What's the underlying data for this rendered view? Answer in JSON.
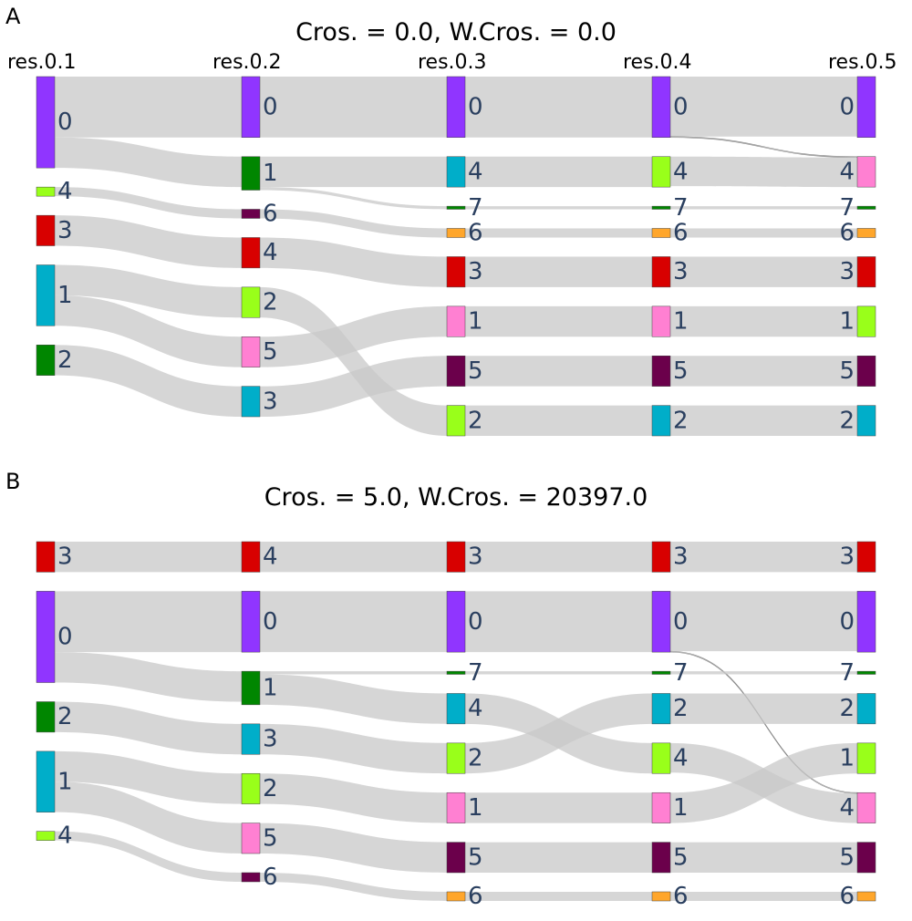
{
  "panels": [
    {
      "letter": "A",
      "title": "Cros. = 0.0, W.Cros. = 0.0",
      "columns": [
        "res.0.1",
        "res.0.2",
        "res.0.3",
        "res.0.4",
        "res.0.5"
      ],
      "nodes": [
        [
          {
            "label": "0",
            "color": "#9035ff",
            "size": 0.3
          },
          {
            "label": "4",
            "color": "#99ff1a",
            "size": 0.03
          },
          {
            "label": "3",
            "color": "#d80000",
            "size": 0.1
          },
          {
            "label": "1",
            "color": "#00aec9",
            "size": 0.2
          },
          {
            "label": "2",
            "color": "#008600",
            "size": 0.1
          }
        ],
        [
          {
            "label": "0",
            "color": "#9035ff",
            "size": 0.2
          },
          {
            "label": "1",
            "color": "#008600",
            "size": 0.11
          },
          {
            "label": "6",
            "color": "#6b004b",
            "size": 0.03
          },
          {
            "label": "4",
            "color": "#d80000",
            "size": 0.1
          },
          {
            "label": "2",
            "color": "#99ff1a",
            "size": 0.1
          },
          {
            "label": "5",
            "color": "#ff80d2",
            "size": 0.1
          },
          {
            "label": "3",
            "color": "#00aec9",
            "size": 0.1
          }
        ],
        [
          {
            "label": "0",
            "color": "#9035ff",
            "size": 0.2
          },
          {
            "label": "4",
            "color": "#00aec9",
            "size": 0.1
          },
          {
            "label": "7",
            "color": "#008600",
            "size": 0.01
          },
          {
            "label": "6",
            "color": "#ffa62b",
            "size": 0.03
          },
          {
            "label": "3",
            "color": "#d80000",
            "size": 0.1
          },
          {
            "label": "1",
            "color": "#ff80d2",
            "size": 0.1
          },
          {
            "label": "5",
            "color": "#6b004b",
            "size": 0.1
          },
          {
            "label": "2",
            "color": "#99ff1a",
            "size": 0.1
          }
        ],
        [
          {
            "label": "0",
            "color": "#9035ff",
            "size": 0.2
          },
          {
            "label": "4",
            "color": "#99ff1a",
            "size": 0.1
          },
          {
            "label": "7",
            "color": "#008600",
            "size": 0.01
          },
          {
            "label": "6",
            "color": "#ffa62b",
            "size": 0.03
          },
          {
            "label": "3",
            "color": "#d80000",
            "size": 0.1
          },
          {
            "label": "1",
            "color": "#ff80d2",
            "size": 0.1
          },
          {
            "label": "5",
            "color": "#6b004b",
            "size": 0.1
          },
          {
            "label": "2",
            "color": "#00aec9",
            "size": 0.1
          }
        ],
        [
          {
            "label": "0",
            "color": "#9035ff",
            "size": 0.2
          },
          {
            "label": "4",
            "color": "#ff80d2",
            "size": 0.1
          },
          {
            "label": "7",
            "color": "#008600",
            "size": 0.01
          },
          {
            "label": "6",
            "color": "#ffa62b",
            "size": 0.03
          },
          {
            "label": "3",
            "color": "#d80000",
            "size": 0.1
          },
          {
            "label": "1",
            "color": "#99ff1a",
            "size": 0.1
          },
          {
            "label": "5",
            "color": "#6b004b",
            "size": 0.1
          },
          {
            "label": "2",
            "color": "#00aec9",
            "size": 0.1
          }
        ]
      ],
      "links": [
        [
          {
            "s": 0,
            "t": 0,
            "v": 0.2
          },
          {
            "s": 0,
            "t": 1,
            "v": 0.1
          },
          {
            "s": 1,
            "t": 2,
            "v": 0.03
          },
          {
            "s": 2,
            "t": 3,
            "v": 0.1
          },
          {
            "s": 3,
            "t": 4,
            "v": 0.1
          },
          {
            "s": 3,
            "t": 5,
            "v": 0.1
          },
          {
            "s": 4,
            "t": 6,
            "v": 0.1
          }
        ],
        [
          {
            "s": 0,
            "t": 0,
            "v": 0.2
          },
          {
            "s": 1,
            "t": 1,
            "v": 0.1
          },
          {
            "s": 1,
            "t": 2,
            "v": 0.01
          },
          {
            "s": 2,
            "t": 3,
            "v": 0.03
          },
          {
            "s": 3,
            "t": 4,
            "v": 0.1
          },
          {
            "s": 4,
            "t": 7,
            "v": 0.1
          },
          {
            "s": 5,
            "t": 5,
            "v": 0.1
          },
          {
            "s": 6,
            "t": 6,
            "v": 0.1
          }
        ],
        [
          {
            "s": 0,
            "t": 0,
            "v": 0.2
          },
          {
            "s": 1,
            "t": 1,
            "v": 0.1
          },
          {
            "s": 2,
            "t": 2,
            "v": 0.01
          },
          {
            "s": 3,
            "t": 3,
            "v": 0.03
          },
          {
            "s": 4,
            "t": 4,
            "v": 0.1
          },
          {
            "s": 5,
            "t": 5,
            "v": 0.1
          },
          {
            "s": 6,
            "t": 6,
            "v": 0.1
          },
          {
            "s": 7,
            "t": 7,
            "v": 0.1
          }
        ],
        [
          {
            "s": 0,
            "t": 0,
            "v": 0.197
          },
          {
            "s": 0,
            "t": 1,
            "v": 0.003
          },
          {
            "s": 1,
            "t": 1,
            "v": 0.097
          },
          {
            "s": 2,
            "t": 2,
            "v": 0.01
          },
          {
            "s": 3,
            "t": 3,
            "v": 0.03
          },
          {
            "s": 4,
            "t": 4,
            "v": 0.1
          },
          {
            "s": 5,
            "t": 5,
            "v": 0.1
          },
          {
            "s": 6,
            "t": 6,
            "v": 0.1
          },
          {
            "s": 7,
            "t": 7,
            "v": 0.1
          }
        ]
      ]
    },
    {
      "letter": "B",
      "title": "Cros. = 5.0, W.Cros. = 20397.0",
      "columns": [
        "",
        "",
        "",
        "",
        ""
      ],
      "nodes": [
        [
          {
            "label": "3",
            "color": "#d80000",
            "size": 0.1
          },
          {
            "label": "0",
            "color": "#9035ff",
            "size": 0.3
          },
          {
            "label": "2",
            "color": "#008600",
            "size": 0.1
          },
          {
            "label": "1",
            "color": "#00aec9",
            "size": 0.2
          },
          {
            "label": "4",
            "color": "#99ff1a",
            "size": 0.03
          }
        ],
        [
          {
            "label": "4",
            "color": "#d80000",
            "size": 0.1
          },
          {
            "label": "0",
            "color": "#9035ff",
            "size": 0.2
          },
          {
            "label": "1",
            "color": "#008600",
            "size": 0.11
          },
          {
            "label": "3",
            "color": "#00aec9",
            "size": 0.1
          },
          {
            "label": "2",
            "color": "#99ff1a",
            "size": 0.1
          },
          {
            "label": "5",
            "color": "#ff80d2",
            "size": 0.1
          },
          {
            "label": "6",
            "color": "#6b004b",
            "size": 0.03
          }
        ],
        [
          {
            "label": "3",
            "color": "#d80000",
            "size": 0.1
          },
          {
            "label": "0",
            "color": "#9035ff",
            "size": 0.2
          },
          {
            "label": "7",
            "color": "#008600",
            "size": 0.01
          },
          {
            "label": "4",
            "color": "#00aec9",
            "size": 0.1
          },
          {
            "label": "2",
            "color": "#99ff1a",
            "size": 0.1
          },
          {
            "label": "1",
            "color": "#ff80d2",
            "size": 0.1
          },
          {
            "label": "5",
            "color": "#6b004b",
            "size": 0.1
          },
          {
            "label": "6",
            "color": "#ffa62b",
            "size": 0.03
          }
        ],
        [
          {
            "label": "3",
            "color": "#d80000",
            "size": 0.1
          },
          {
            "label": "0",
            "color": "#9035ff",
            "size": 0.2
          },
          {
            "label": "7",
            "color": "#008600",
            "size": 0.01
          },
          {
            "label": "2",
            "color": "#00aec9",
            "size": 0.1
          },
          {
            "label": "4",
            "color": "#99ff1a",
            "size": 0.1
          },
          {
            "label": "1",
            "color": "#ff80d2",
            "size": 0.1
          },
          {
            "label": "5",
            "color": "#6b004b",
            "size": 0.1
          },
          {
            "label": "6",
            "color": "#ffa62b",
            "size": 0.03
          }
        ],
        [
          {
            "label": "3",
            "color": "#d80000",
            "size": 0.1
          },
          {
            "label": "0",
            "color": "#9035ff",
            "size": 0.2
          },
          {
            "label": "7",
            "color": "#008600",
            "size": 0.01
          },
          {
            "label": "2",
            "color": "#00aec9",
            "size": 0.1
          },
          {
            "label": "1",
            "color": "#99ff1a",
            "size": 0.1
          },
          {
            "label": "4",
            "color": "#ff80d2",
            "size": 0.1
          },
          {
            "label": "5",
            "color": "#6b004b",
            "size": 0.1
          },
          {
            "label": "6",
            "color": "#ffa62b",
            "size": 0.03
          }
        ]
      ],
      "links": [
        [
          {
            "s": 0,
            "t": 0,
            "v": 0.1
          },
          {
            "s": 1,
            "t": 1,
            "v": 0.2
          },
          {
            "s": 1,
            "t": 2,
            "v": 0.1
          },
          {
            "s": 2,
            "t": 3,
            "v": 0.1
          },
          {
            "s": 3,
            "t": 4,
            "v": 0.1
          },
          {
            "s": 3,
            "t": 5,
            "v": 0.1
          },
          {
            "s": 4,
            "t": 6,
            "v": 0.03
          }
        ],
        [
          {
            "s": 0,
            "t": 0,
            "v": 0.1
          },
          {
            "s": 1,
            "t": 1,
            "v": 0.2
          },
          {
            "s": 2,
            "t": 2,
            "v": 0.01
          },
          {
            "s": 2,
            "t": 3,
            "v": 0.1
          },
          {
            "s": 3,
            "t": 4,
            "v": 0.1
          },
          {
            "s": 4,
            "t": 5,
            "v": 0.1
          },
          {
            "s": 5,
            "t": 6,
            "v": 0.1
          },
          {
            "s": 6,
            "t": 7,
            "v": 0.03
          }
        ],
        [
          {
            "s": 0,
            "t": 0,
            "v": 0.1
          },
          {
            "s": 1,
            "t": 1,
            "v": 0.2
          },
          {
            "s": 2,
            "t": 2,
            "v": 0.01
          },
          {
            "s": 3,
            "t": 4,
            "v": 0.1
          },
          {
            "s": 4,
            "t": 3,
            "v": 0.1
          },
          {
            "s": 5,
            "t": 5,
            "v": 0.1
          },
          {
            "s": 6,
            "t": 6,
            "v": 0.1
          },
          {
            "s": 7,
            "t": 7,
            "v": 0.03
          }
        ],
        [
          {
            "s": 0,
            "t": 0,
            "v": 0.1
          },
          {
            "s": 1,
            "t": 1,
            "v": 0.197
          },
          {
            "s": 1,
            "t": 5,
            "v": 0.003
          },
          {
            "s": 2,
            "t": 2,
            "v": 0.01
          },
          {
            "s": 3,
            "t": 3,
            "v": 0.1
          },
          {
            "s": 4,
            "t": 5,
            "v": 0.097
          },
          {
            "s": 5,
            "t": 4,
            "v": 0.1
          },
          {
            "s": 6,
            "t": 6,
            "v": 0.1
          },
          {
            "s": 7,
            "t": 7,
            "v": 0.03
          }
        ]
      ]
    }
  ],
  "colors": {
    "link": "#c8c8c8",
    "label": "#2a3f5f"
  }
}
